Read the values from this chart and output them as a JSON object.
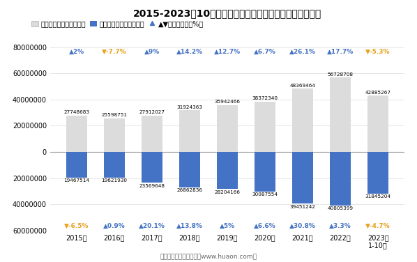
{
  "title": "2015-2023年10月中国与东南亚国家联盟进、出口商品总值",
  "years": [
    "2015年",
    "2016年",
    "2017年",
    "2018年",
    "2019年",
    "2020年",
    "2021年",
    "2022年",
    "2023年\n1-10月"
  ],
  "export_values": [
    27748683,
    25598751,
    27912027,
    31924363,
    35942466,
    38372340,
    48369464,
    56728708,
    42885267
  ],
  "import_values": [
    19467514,
    19621930,
    23569648,
    26862836,
    28204166,
    30087554,
    39451242,
    40805399,
    31845204
  ],
  "export_growth": [
    "▲2%",
    "▼-7.7%",
    "▲9%",
    "▲14.2%",
    "▲12.7%",
    "▲6.7%",
    "▲26.1%",
    "▲17.7%",
    "▼-5.3%"
  ],
  "import_growth": [
    "▼-6.5%",
    "▲0.9%",
    "▲20.1%",
    "▲13.8%",
    "▲5%",
    "▲6.6%",
    "▲30.8%",
    "▲3.3%",
    "▼-4.7%"
  ],
  "export_growth_colors": [
    "#4472C4",
    "#E8A020",
    "#4472C4",
    "#4472C4",
    "#4472C4",
    "#4472C4",
    "#4472C4",
    "#4472C4",
    "#E8A020"
  ],
  "import_growth_colors": [
    "#E8A020",
    "#4472C4",
    "#4472C4",
    "#4472C4",
    "#4472C4",
    "#4472C4",
    "#4472C4",
    "#4472C4",
    "#E8A020"
  ],
  "export_bar_color": "#DCDCDC",
  "import_bar_color": "#4472C4",
  "ylim": [
    -60000000,
    80000000
  ],
  "yticks": [
    -60000000,
    -40000000,
    -20000000,
    0,
    20000000,
    40000000,
    60000000,
    80000000
  ],
  "footer": "制图：华经产业研究院（www.huaon.com）",
  "legend_labels": [
    "出口商品总值（万美元）",
    "进口商品总值（万美元）",
    "▲▼同比增长率（%）"
  ],
  "export_label_color": "black",
  "import_label_color": "black",
  "bar_width": 0.55
}
